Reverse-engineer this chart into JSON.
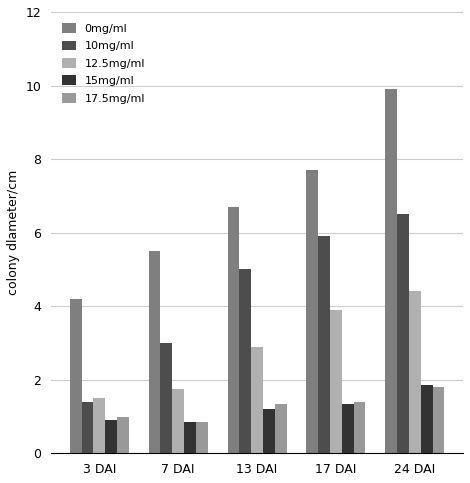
{
  "categories": [
    "3 DAI",
    "7 DAI",
    "13 DAI",
    "17 DAI",
    "24 DAI"
  ],
  "series": [
    {
      "label": "0mg/ml",
      "values": [
        4.2,
        5.5,
        6.7,
        7.7,
        9.9
      ],
      "color": "#7f7f7f"
    },
    {
      "label": "10mg/ml",
      "values": [
        1.4,
        3.0,
        5.0,
        5.9,
        6.5
      ],
      "color": "#4d4d4d"
    },
    {
      "label": "12.5mg/ml",
      "values": [
        1.5,
        1.75,
        2.9,
        3.9,
        4.4
      ],
      "color": "#b0b0b0"
    },
    {
      "label": "15mg/ml",
      "values": [
        0.9,
        0.85,
        1.2,
        1.35,
        1.85
      ],
      "color": "#333333"
    },
    {
      "label": "17.5mg/ml",
      "values": [
        1.0,
        0.85,
        1.35,
        1.4,
        1.8
      ],
      "color": "#999999"
    }
  ],
  "ylabel": "colony dlameter/cm",
  "ylim": [
    0,
    12
  ],
  "yticks": [
    0,
    2,
    4,
    6,
    8,
    10,
    12
  ],
  "background_color": "#ffffff",
  "bar_width": 0.15,
  "grid_color": "#cccccc"
}
